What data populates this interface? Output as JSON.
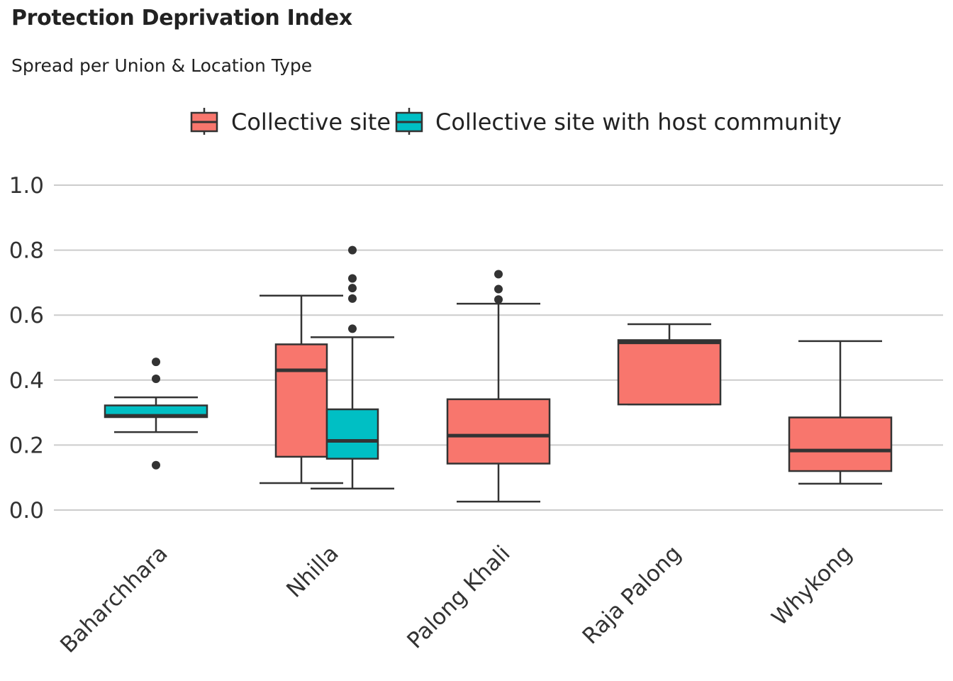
{
  "chart_data": {
    "type": "boxplot",
    "title": "Protection Deprivation Index",
    "subtitle": "Spread per Union & Location Type",
    "xlabel": "",
    "ylabel": "",
    "ylim": [
      0,
      1
    ],
    "yticks": [
      0.0,
      0.2,
      0.4,
      0.6,
      0.8,
      1.0
    ],
    "ytick_labels": [
      "0.0",
      "0.2",
      "0.4",
      "0.6",
      "0.8",
      "1.0"
    ],
    "grid": "horizontal",
    "legend_position": "top",
    "categories": [
      "Baharchhara",
      "Nhilla",
      "Palong Khali",
      "Raja Palong",
      "Whykong"
    ],
    "series": [
      {
        "name": "Collective site",
        "color": "#F8766D",
        "boxes": [
          {
            "category": "Nhilla",
            "whisker_low": 0.083,
            "q1": 0.164,
            "median": 0.43,
            "q3": 0.51,
            "whisker_high": 0.66,
            "outliers": []
          },
          {
            "category": "Palong Khali",
            "whisker_low": 0.026,
            "q1": 0.143,
            "median": 0.229,
            "q3": 0.341,
            "whisker_high": 0.635,
            "outliers": [
              0.648,
              0.68,
              0.726
            ]
          },
          {
            "category": "Raja Palong",
            "whisker_low": 0.325,
            "q1": 0.325,
            "median": 0.516,
            "q3": 0.523,
            "whisker_high": 0.572,
            "outliers": []
          },
          {
            "category": "Whykong",
            "whisker_low": 0.081,
            "q1": 0.12,
            "median": 0.183,
            "q3": 0.285,
            "whisker_high": 0.52,
            "outliers": []
          }
        ]
      },
      {
        "name": "Collective site with host community",
        "color": "#00BFC4",
        "boxes": [
          {
            "category": "Baharchhara",
            "whisker_low": 0.24,
            "q1": 0.286,
            "median": 0.29,
            "q3": 0.322,
            "whisker_high": 0.347,
            "outliers": [
              0.138,
              0.404,
              0.456
            ]
          },
          {
            "category": "Nhilla",
            "whisker_low": 0.066,
            "q1": 0.158,
            "median": 0.213,
            "q3": 0.31,
            "whisker_high": 0.532,
            "outliers": [
              0.558,
              0.651,
              0.683,
              0.713,
              0.8
            ]
          }
        ]
      }
    ]
  }
}
